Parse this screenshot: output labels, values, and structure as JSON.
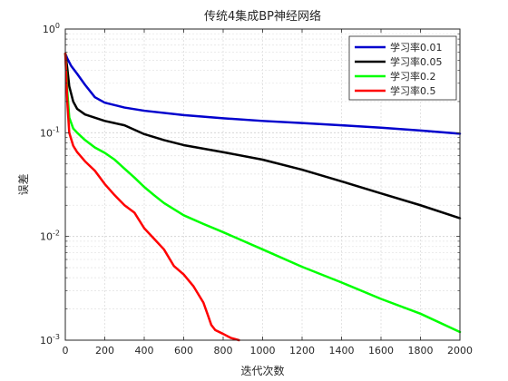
{
  "chart_data": {
    "type": "line",
    "title": "传统4集成BP神经网络",
    "xlabel": "迭代次数",
    "ylabel": "误差",
    "xlim": [
      0,
      2000
    ],
    "ylim": [
      0.001,
      1
    ],
    "yscale": "log",
    "grid": true,
    "legend_position": "top-right",
    "x_ticks": [
      0,
      200,
      400,
      600,
      800,
      1000,
      1200,
      1400,
      1600,
      1800,
      2000
    ],
    "y_ticks": [
      0.001,
      0.01,
      0.1,
      1
    ],
    "y_tick_exponents": [
      "-3",
      "-2",
      "-1",
      "0"
    ],
    "series": [
      {
        "name": "学习率0.01",
        "color": "#0000cd",
        "points": [
          [
            0,
            0.58
          ],
          [
            10,
            0.52
          ],
          [
            30,
            0.44
          ],
          [
            60,
            0.37
          ],
          [
            100,
            0.29
          ],
          [
            150,
            0.22
          ],
          [
            200,
            0.195
          ],
          [
            300,
            0.175
          ],
          [
            400,
            0.163
          ],
          [
            600,
            0.148
          ],
          [
            800,
            0.138
          ],
          [
            1000,
            0.13
          ],
          [
            1200,
            0.124
          ],
          [
            1400,
            0.118
          ],
          [
            1600,
            0.112
          ],
          [
            1800,
            0.105
          ],
          [
            2000,
            0.098
          ]
        ]
      },
      {
        "name": "学习率0.05",
        "color": "#000000",
        "points": [
          [
            0,
            0.58
          ],
          [
            10,
            0.42
          ],
          [
            20,
            0.28
          ],
          [
            40,
            0.2
          ],
          [
            60,
            0.17
          ],
          [
            100,
            0.15
          ],
          [
            200,
            0.13
          ],
          [
            300,
            0.118
          ],
          [
            350,
            0.107
          ],
          [
            400,
            0.097
          ],
          [
            500,
            0.085
          ],
          [
            600,
            0.076
          ],
          [
            800,
            0.065
          ],
          [
            1000,
            0.055
          ],
          [
            1200,
            0.044
          ],
          [
            1400,
            0.034
          ],
          [
            1600,
            0.026
          ],
          [
            1800,
            0.02
          ],
          [
            2000,
            0.015
          ]
        ]
      },
      {
        "name": "学习率0.2",
        "color": "#00ff00",
        "points": [
          [
            0,
            0.58
          ],
          [
            10,
            0.25
          ],
          [
            20,
            0.14
          ],
          [
            40,
            0.11
          ],
          [
            60,
            0.1
          ],
          [
            100,
            0.085
          ],
          [
            150,
            0.072
          ],
          [
            200,
            0.064
          ],
          [
            250,
            0.055
          ],
          [
            300,
            0.045
          ],
          [
            350,
            0.037
          ],
          [
            400,
            0.03
          ],
          [
            450,
            0.025
          ],
          [
            500,
            0.021
          ],
          [
            600,
            0.016
          ],
          [
            700,
            0.0132
          ],
          [
            800,
            0.011
          ],
          [
            1000,
            0.0075
          ],
          [
            1200,
            0.0051
          ],
          [
            1400,
            0.0036
          ],
          [
            1600,
            0.0025
          ],
          [
            1800,
            0.0018
          ],
          [
            2000,
            0.0012
          ]
        ]
      },
      {
        "name": "学习率0.5",
        "color": "#ff0000",
        "points": [
          [
            0,
            0.58
          ],
          [
            10,
            0.2
          ],
          [
            20,
            0.1
          ],
          [
            40,
            0.075
          ],
          [
            60,
            0.065
          ],
          [
            100,
            0.053
          ],
          [
            150,
            0.043
          ],
          [
            200,
            0.032
          ],
          [
            250,
            0.025
          ],
          [
            300,
            0.02
          ],
          [
            350,
            0.017
          ],
          [
            400,
            0.012
          ],
          [
            450,
            0.0095
          ],
          [
            500,
            0.0075
          ],
          [
            550,
            0.0052
          ],
          [
            600,
            0.0043
          ],
          [
            650,
            0.0033
          ],
          [
            700,
            0.0023
          ],
          [
            720,
            0.0018
          ],
          [
            740,
            0.0014
          ],
          [
            760,
            0.00125
          ],
          [
            800,
            0.00115
          ],
          [
            840,
            0.00105
          ],
          [
            880,
            0.001
          ]
        ]
      }
    ]
  }
}
